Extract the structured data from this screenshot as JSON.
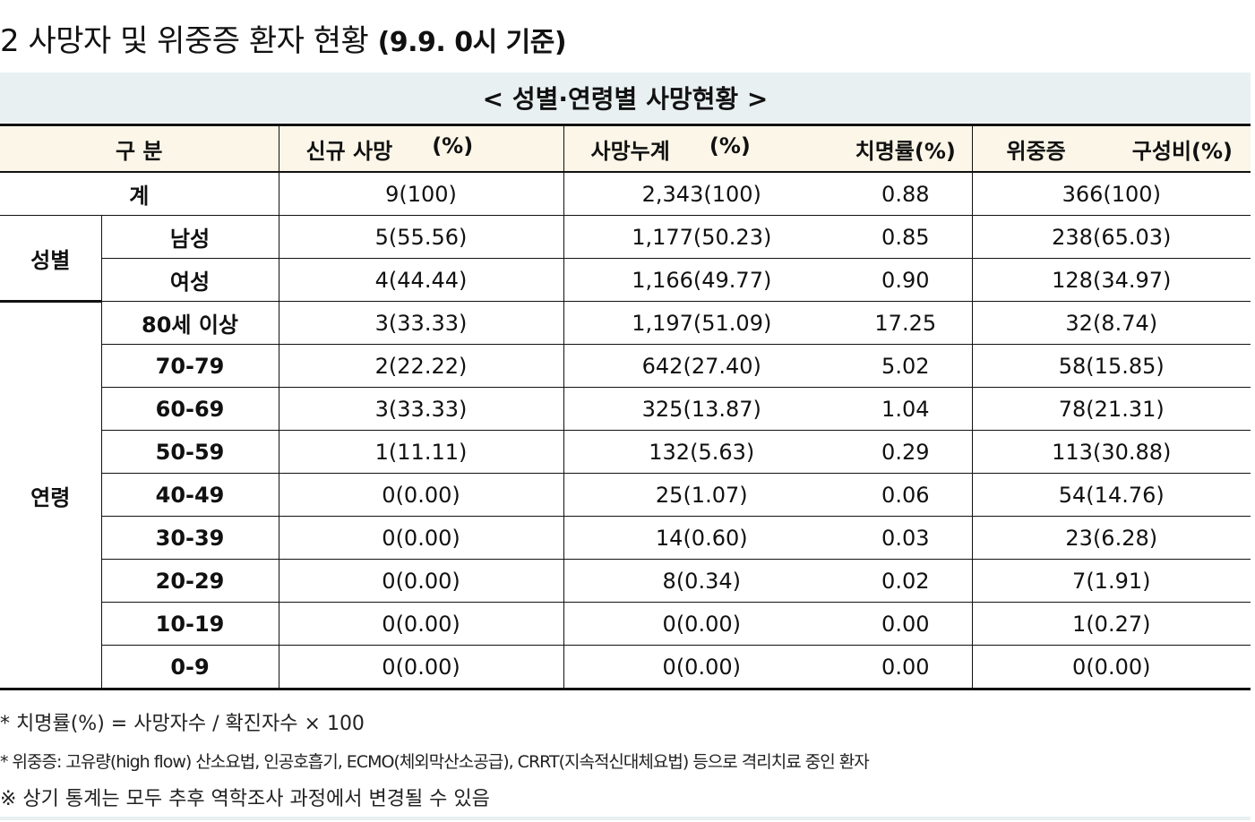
{
  "title": {
    "main": "2  사망자 및 위중증 환자 현황",
    "sub": "(9.9. 0시 기준)"
  },
  "caption": "< 성별·연령별 사망현황 >",
  "headers": {
    "category": "구 분",
    "new_deaths": "신규 사망",
    "new_deaths_pct": "(%)",
    "cum_deaths": "사망누계",
    "cum_deaths_pct": "(%)",
    "fatality": "치명률(%)",
    "critical": "위중증",
    "critical_share": "구성비(%)"
  },
  "total": {
    "label": "계",
    "new": "9(100)",
    "cum": "2,343(100)",
    "fatality": "0.88",
    "critical": "366(100)"
  },
  "sex": {
    "group_label": "성별",
    "rows": [
      {
        "label": "남성",
        "new": "5(55.56)",
        "cum": "1,177(50.23)",
        "fatality": "0.85",
        "critical": "238(65.03)"
      },
      {
        "label": "여성",
        "new": "4(44.44)",
        "cum": "1,166(49.77)",
        "fatality": "0.90",
        "critical": "128(34.97)"
      }
    ]
  },
  "age": {
    "group_label": "연령",
    "rows": [
      {
        "label": "80세 이상",
        "new": "3(33.33)",
        "cum": "1,197(51.09)",
        "fatality": "17.25",
        "critical": "32(8.74)"
      },
      {
        "label": "70-79",
        "new": "2(22.22)",
        "cum": "642(27.40)",
        "fatality": "5.02",
        "critical": "58(15.85)"
      },
      {
        "label": "60-69",
        "new": "3(33.33)",
        "cum": "325(13.87)",
        "fatality": "1.04",
        "critical": "78(21.31)"
      },
      {
        "label": "50-59",
        "new": "1(11.11)",
        "cum": "132(5.63)",
        "fatality": "0.29",
        "critical": "113(30.88)"
      },
      {
        "label": "40-49",
        "new": "0(0.00)",
        "cum": "25(1.07)",
        "fatality": "0.06",
        "critical": "54(14.76)"
      },
      {
        "label": "30-39",
        "new": "0(0.00)",
        "cum": "14(0.60)",
        "fatality": "0.03",
        "critical": "23(6.28)"
      },
      {
        "label": "20-29",
        "new": "0(0.00)",
        "cum": "8(0.34)",
        "fatality": "0.02",
        "critical": "7(1.91)"
      },
      {
        "label": "10-19",
        "new": "0(0.00)",
        "cum": "0(0.00)",
        "fatality": "0.00",
        "critical": "1(0.27)"
      },
      {
        "label": "0-9",
        "new": "0(0.00)",
        "cum": "0(0.00)",
        "fatality": "0.00",
        "critical": "0(0.00)"
      }
    ]
  },
  "notes": [
    "* 치명률(%) = 사망자수 / 확진자수 × 100",
    "* 위중증: 고유량(high flow) 산소요법, 인공호흡기, ECMO(체외막산소공급), CRRT(지속적신대체요법) 등으로 격리치료 중인 환자",
    "※ 상기 통계는 모두 추후 역학조사 과정에서 변경될 수 있음"
  ]
}
